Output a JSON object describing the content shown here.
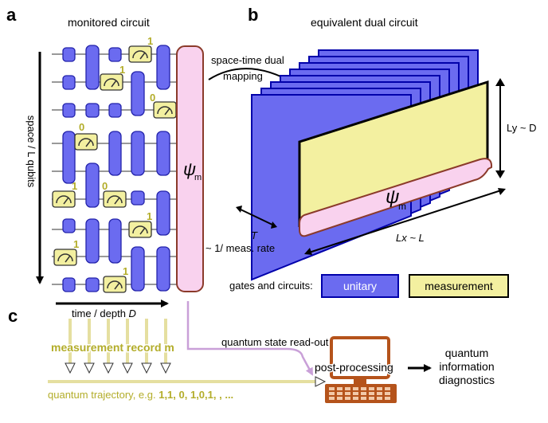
{
  "panels": {
    "a": "a",
    "b": "b",
    "c": "c"
  },
  "panel_a": {
    "title": "monitored circuit",
    "space_axis": "space / L qubits",
    "time_axis_prefix": "time / depth ",
    "time_axis_var": "D",
    "psi_symbol": "ψ",
    "psi_subscript": "m",
    "outcomes": [
      "1",
      "1",
      "0",
      "0",
      "1",
      "0",
      "1",
      "1",
      "1"
    ]
  },
  "panel_b": {
    "title": "equivalent dual circuit",
    "mapping_line1": "space-time dual",
    "mapping_line2": "mapping",
    "psi_symbol": "ψ",
    "psi_subscript": "m",
    "ly_label": "Ly ~ D",
    "lx_label": "Lx ~ L",
    "t_label": "T",
    "rate_label": "~ 1/ meas. rate",
    "legend_title": "gates and circuits:",
    "legend_unitary": "unitary",
    "legend_measurement": "measurement"
  },
  "panel_c": {
    "record_label": "measurement record m",
    "trajectory_prefix": "quantum trajectory, e.g. ",
    "trajectory_values": "1,1,  0,  1,0,1,  , ...",
    "readout_label": "quantum state read-out",
    "postprocessing_label": "post-processing",
    "diagnostics_line1": "quantum",
    "diagnostics_line2": "information",
    "diagnostics_line3": "diagnostics"
  },
  "colors": {
    "unitary": "#6b6bf0",
    "measurement": "#f3f0a0",
    "psi_fill": "#f9d2ee",
    "psi_stroke": "#8b3a2a",
    "olive_text": "#b3ad2a",
    "readout_arrow": "#c9a0d8",
    "computer": "#b5531b"
  }
}
